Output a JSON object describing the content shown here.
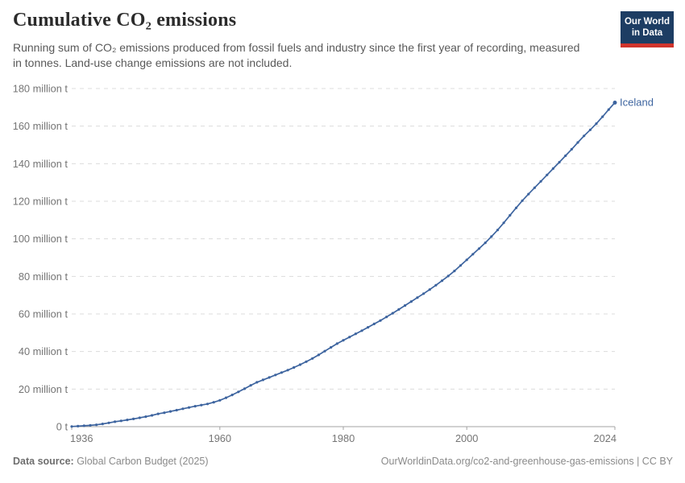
{
  "header": {
    "title": "Cumulative CO₂ emissions",
    "subtitle": "Running sum of CO₂ emissions produced from fossil fuels and industry since the first year of recording, measured in tonnes. Land-use change emissions are not included.",
    "logo": {
      "line1": "Our World",
      "line2": "in Data"
    }
  },
  "brand": {
    "logo_bg": "#1d3d63",
    "logo_stripe": "#d0342c",
    "line_color": "#3d649f",
    "grid_color": "#dcdcdc",
    "axis_color": "#a3a3a3",
    "tick_text_color": "#757575"
  },
  "chart_data": {
    "type": "line",
    "title": "Cumulative CO₂ emissions",
    "ylabel": "",
    "xlabel": "",
    "grid": "horizontal dashed",
    "legend_position": "end-of-line label",
    "x": {
      "range": [
        1936,
        2024
      ],
      "ticks": [
        1936,
        1960,
        1980,
        2000,
        2024
      ]
    },
    "y": {
      "range": [
        0,
        180
      ],
      "ticks": [
        0,
        20,
        40,
        60,
        80,
        100,
        120,
        140,
        160,
        180
      ],
      "tick_labels": [
        "0 t",
        "20 million t",
        "40 million t",
        "60 million t",
        "80 million t",
        "100 million t",
        "120 million t",
        "140 million t",
        "160 million t",
        "180 million t"
      ],
      "unit": "million t"
    },
    "series": [
      {
        "name": "Iceland",
        "color": "#3d649f",
        "start_year": 1936,
        "values": [
          0.1,
          0.25,
          0.45,
          0.7,
          1.0,
          1.45,
          2.0,
          2.6,
          3.1,
          3.6,
          4.1,
          4.7,
          5.3,
          6.0,
          6.8,
          7.4,
          8.1,
          8.8,
          9.5,
          10.2,
          10.9,
          11.5,
          12.1,
          13.0,
          14.0,
          15.4,
          16.9,
          18.5,
          20.2,
          22.0,
          23.6,
          24.9,
          26.2,
          27.5,
          28.8,
          30.1,
          31.5,
          33.0,
          34.6,
          36.3,
          38.2,
          40.2,
          42.2,
          44.2,
          46.0,
          47.7,
          49.4,
          51.1,
          52.9,
          54.7,
          56.5,
          58.4,
          60.4,
          62.4,
          64.5,
          66.6,
          68.7,
          70.8,
          73.0,
          75.3,
          77.7,
          80.2,
          82.9,
          85.8,
          88.8,
          91.8,
          94.8,
          97.9,
          101.2,
          104.7,
          108.5,
          112.5,
          116.5,
          120.3,
          123.8,
          127.2,
          130.6,
          134.0,
          137.4,
          140.8,
          144.2,
          147.7,
          151.3,
          154.8,
          158.0,
          161.3,
          165.0,
          168.8,
          172.5
        ]
      }
    ]
  },
  "footer": {
    "datasource_label": "Data source:",
    "datasource": " Global Carbon Budget (2025)",
    "link": "OurWorldinData.org/co2-and-greenhouse-gas-emissions | CC BY"
  }
}
